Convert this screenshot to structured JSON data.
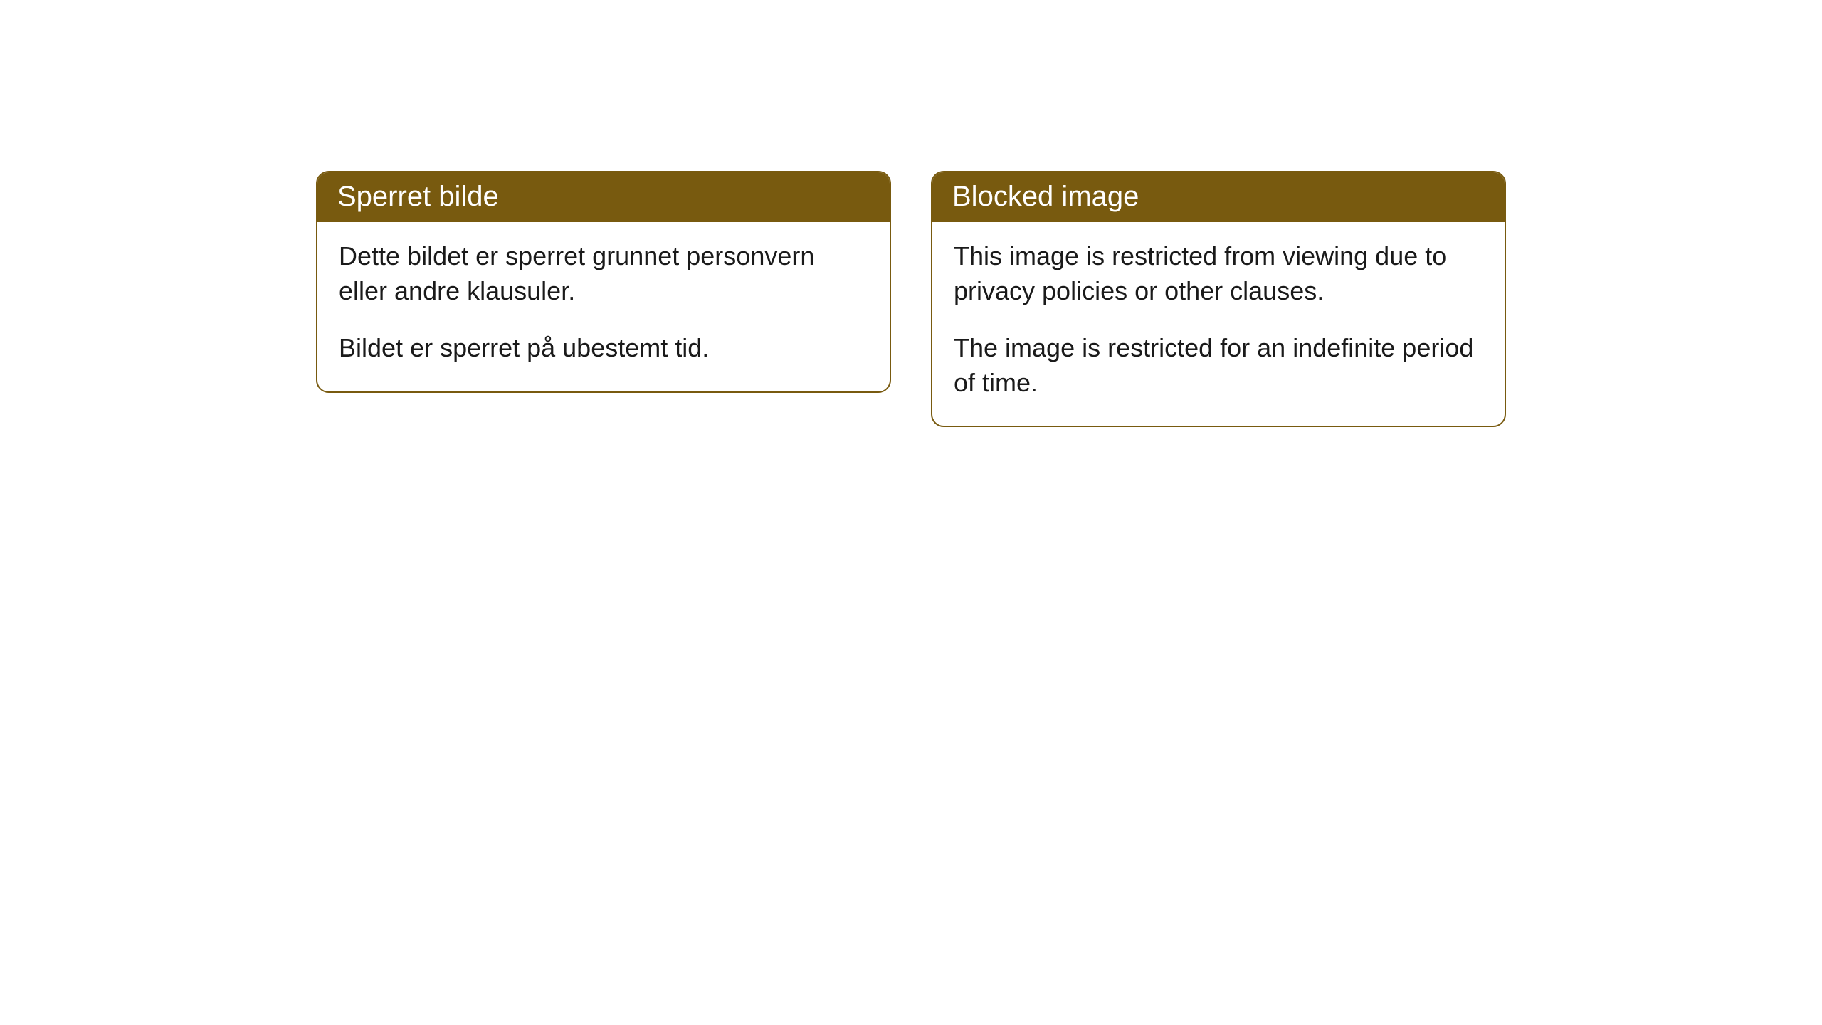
{
  "cards": [
    {
      "title": "Sperret bilde",
      "paragraph1": "Dette bildet er sperret grunnet personvern eller andre klausuler.",
      "paragraph2": "Bildet er sperret på ubestemt tid."
    },
    {
      "title": "Blocked image",
      "paragraph1": "This image is restricted from viewing due to privacy policies or other clauses.",
      "paragraph2": "The image is restricted for an indefinite period of time."
    }
  ],
  "styling": {
    "header_background": "#785a0f",
    "header_text_color": "#ffffff",
    "border_color": "#785a0f",
    "body_text_color": "#1a1a1a",
    "card_background": "#ffffff",
    "border_radius": 18,
    "header_fontsize": 40,
    "body_fontsize": 36
  }
}
